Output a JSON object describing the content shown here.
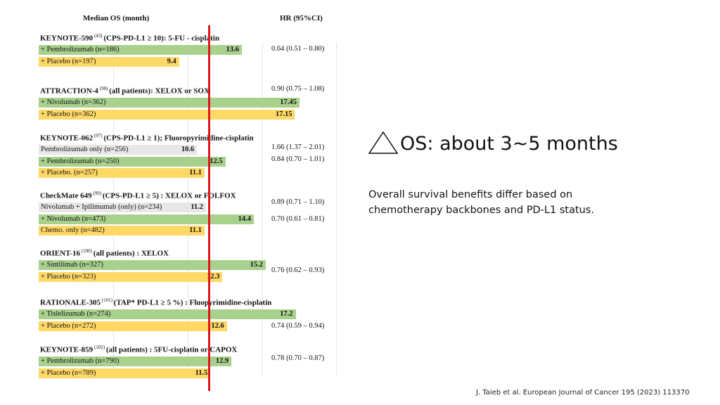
{
  "chart_data": {
    "type": "bar",
    "orientation": "horizontal",
    "header_left": "Median OS (month)",
    "header_right": "HR (95%CI)",
    "xlim": [
      0,
      20
    ],
    "reference_line_months": 11.4,
    "colors": {
      "experimental": "#a9d18e",
      "control": "#ffd966",
      "other": "#e7e7e7",
      "reference": "#e0141b"
    },
    "trials": [
      {
        "name": "KEYNOTE-590",
        "ref": "(43)",
        "desc": "(CPS-PD-L1 ≥ 10): 5-FU - cisplatin",
        "arms": [
          {
            "label": "+ Pembrolizumab (n=186)",
            "value": 13.6,
            "value_text": "13.6",
            "kind": "experimental"
          },
          {
            "label": "+ Placebo (n=197)",
            "value": 9.4,
            "value_text": "9.4",
            "kind": "control"
          }
        ],
        "hr": [
          "0.64 (0.51 – 0.80)"
        ]
      },
      {
        "name": "ATTRACTION-4",
        "ref": "(98)",
        "desc": "(all patients): XELOX or SOX",
        "arms": [
          {
            "label": "+ Nivolumab (n=362)",
            "value": 17.45,
            "value_text": "17.45",
            "kind": "experimental"
          },
          {
            "label": "+ Placebo (n=362)",
            "value": 17.15,
            "value_text": "17.15",
            "kind": "control"
          }
        ],
        "hr": [
          "0.90 (0.75 – 1.08)"
        ]
      },
      {
        "name": "KEYNOTE-062",
        "ref": "(97)",
        "desc": "(CPS-PD-L1 ≥ 1); Fluoropyrimidine-cisplatin",
        "arms": [
          {
            "label": "Pembrolizumab only (n=256)",
            "value": 10.6,
            "value_text": "10.6",
            "kind": "other"
          },
          {
            "label": "+ Pembrolizumab (n=250)",
            "value": 12.5,
            "value_text": "12.5",
            "kind": "experimental"
          },
          {
            "label": "+ Placebo. (n=257)",
            "value": 11.1,
            "value_text": "11.1",
            "kind": "control"
          }
        ],
        "hr": [
          "1.66 (1.37 – 2.01)",
          "0.84 (0.70 – 1.01)"
        ]
      },
      {
        "name": "CheckMate 649",
        "ref": "(99)",
        "desc": "(CPS-PD-L1 ≥ 5) : XELOX or FOLFOX",
        "arms": [
          {
            "label": "Nivolumab + Ipilimumab (only) (n=234)",
            "value": 11.2,
            "value_text": "11.2",
            "kind": "other"
          },
          {
            "label": "+ Nivolumab (n=473)",
            "value": 14.4,
            "value_text": "14.4",
            "kind": "experimental"
          },
          {
            "label": "Chemo. only (n=482)",
            "value": 11.1,
            "value_text": "11.1",
            "kind": "control"
          }
        ],
        "hr": [
          "0.89 (0.71 – 1.10)",
          "0.70 (0.61 – 0.81)"
        ]
      },
      {
        "name": "ORIENT-16",
        "ref": "(100)",
        "desc": "(all patients) : XELOX",
        "arms": [
          {
            "label": "+ Sintilimab (n=327)",
            "value": 15.2,
            "value_text": "15.2",
            "kind": "experimental"
          },
          {
            "label": "+ Placebo (n=323)",
            "value": 12.3,
            "value_text": "12.3",
            "kind": "control"
          }
        ],
        "hr": [
          "0.76 (0.62 – 0.93)"
        ]
      },
      {
        "name": "RATIONALE-305",
        "ref": "(101)",
        "desc": "(TAP* PD-L1 ≥ 5 %) : Fluopyrimidine-cisplatin",
        "arms": [
          {
            "label": "+ Tislelizumab (n=274)",
            "value": 17.2,
            "value_text": "17.2",
            "kind": "experimental"
          },
          {
            "label": "+ Placebo (n=272)",
            "value": 12.6,
            "value_text": "12.6",
            "kind": "control"
          }
        ],
        "hr": [
          "0.74 (0.59 – 0.94)"
        ]
      },
      {
        "name": "KEYNOTE-859",
        "ref": "(102)",
        "desc": "(all patients) : 5FU-cisplatin or CAPOX",
        "arms": [
          {
            "label": "+ Pembrolizumab (n=790)",
            "value": 12.9,
            "value_text": "12.9",
            "kind": "experimental"
          },
          {
            "label": "+ Placebo (n=789)",
            "value": 11.5,
            "value_text": "11.5",
            "kind": "control"
          }
        ],
        "hr": [
          "0.78 (0.70 – 0.87)"
        ]
      }
    ]
  },
  "side": {
    "headline_symbol": "triangle-delta-icon",
    "headline": "OS: about 3~5 months",
    "body": "Overall survival benefits differ based on chemotherapy backbones and PD-L1 status."
  },
  "citation": "J. Taieb et al. European Journal of Cancer 195 (2023) 113370"
}
